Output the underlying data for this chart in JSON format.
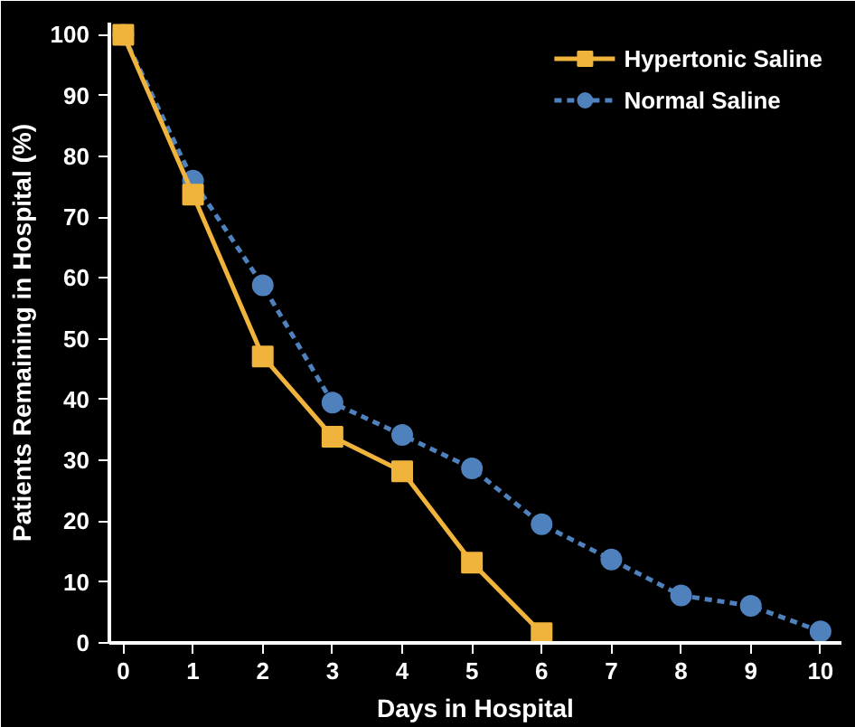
{
  "chart_data": {
    "type": "line",
    "xlabel": "Days in Hospital",
    "ylabel": "Patients Remaining in Hospital (%)",
    "x": [
      0,
      1,
      2,
      3,
      4,
      5,
      6,
      7,
      8,
      9,
      10
    ],
    "series": [
      {
        "name": "Hypertonic Saline",
        "color": "#f0b43c",
        "marker": "square",
        "line_style": "solid",
        "values": [
          100,
          73.7,
          47.1,
          33.9,
          28.2,
          13.2,
          1.6,
          null,
          null,
          null,
          null
        ]
      },
      {
        "name": "Normal Saline",
        "color": "#4f81bd",
        "marker": "circle",
        "line_style": "dashed",
        "values": [
          100,
          76,
          58.8,
          39.5,
          34.2,
          28.7,
          19.5,
          13.7,
          7.8,
          6.1,
          1.9
        ]
      }
    ],
    "xlim": [
      -0.2,
      10.3
    ],
    "ylim": [
      0,
      102
    ],
    "xticks": [
      0,
      1,
      2,
      3,
      4,
      5,
      6,
      7,
      8,
      9,
      10
    ],
    "yticks": [
      0,
      10,
      20,
      30,
      40,
      50,
      60,
      70,
      80,
      90,
      100
    ],
    "grid": false,
    "legend": "top right"
  }
}
